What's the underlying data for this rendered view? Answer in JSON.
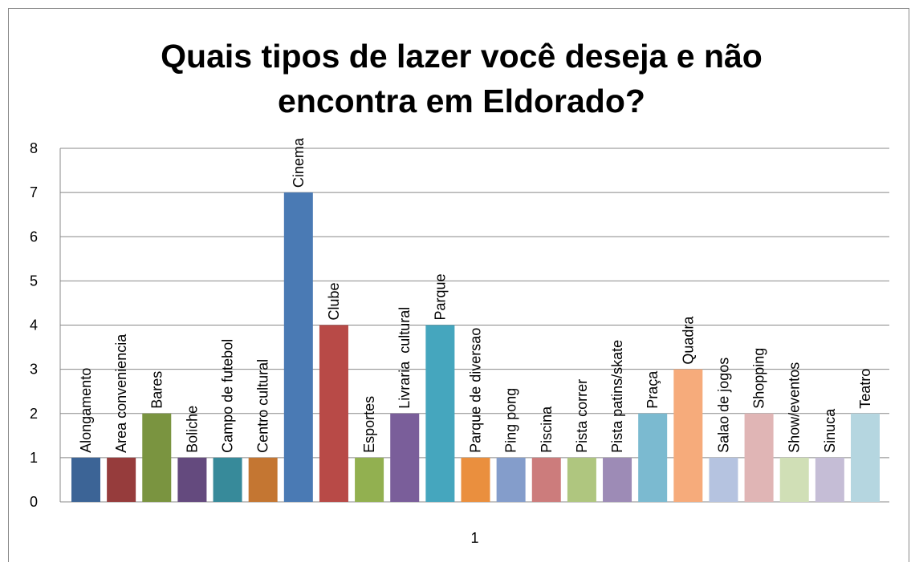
{
  "chart_data": {
    "type": "bar",
    "title": "Quais tipos de lazer você deseja e não encontra em Eldorado?",
    "categories": [
      "1"
    ],
    "ylim": [
      0,
      8
    ],
    "yticks": [
      0,
      1,
      2,
      3,
      4,
      5,
      6,
      7,
      8
    ],
    "grid": true,
    "series": [
      {
        "name": "Alongamento",
        "color": "#3c6496",
        "values": [
          1
        ]
      },
      {
        "name": "Area conveniencia",
        "color": "#963c3c",
        "values": [
          1
        ]
      },
      {
        "name": "Bares",
        "color": "#7a9440",
        "values": [
          2
        ]
      },
      {
        "name": "Boliche",
        "color": "#644a7e",
        "values": [
          1
        ]
      },
      {
        "name": "Campo de futebol",
        "color": "#378a9a",
        "values": [
          1
        ]
      },
      {
        "name": "Centro cultural",
        "color": "#c47632",
        "values": [
          1
        ]
      },
      {
        "name": "Cinema",
        "color": "#4a7ab4",
        "values": [
          7
        ]
      },
      {
        "name": "Clube",
        "color": "#b84a47",
        "values": [
          4
        ]
      },
      {
        "name": "Esportes",
        "color": "#92b050",
        "values": [
          1
        ]
      },
      {
        "name": "Livraria  cultural",
        "color": "#7a5e9a",
        "values": [
          2
        ]
      },
      {
        "name": "Parque",
        "color": "#45a6be",
        "values": [
          4
        ]
      },
      {
        "name": "Parque de diversao",
        "color": "#ea8f3e",
        "values": [
          1
        ]
      },
      {
        "name": "Ping pong",
        "color": "#849dcb",
        "values": [
          1
        ]
      },
      {
        "name": "Piscina",
        "color": "#cc7c7c",
        "values": [
          1
        ]
      },
      {
        "name": "Pista correr",
        "color": "#afc67f",
        "values": [
          1
        ]
      },
      {
        "name": "Pista patins/skate",
        "color": "#9d8bb6",
        "values": [
          1
        ]
      },
      {
        "name": "Praça",
        "color": "#7bbad0",
        "values": [
          2
        ]
      },
      {
        "name": "Quadra",
        "color": "#f6ab7b",
        "values": [
          3
        ]
      },
      {
        "name": "Salao de jogos",
        "color": "#b5c3e0",
        "values": [
          1
        ]
      },
      {
        "name": "Shopping",
        "color": "#e0b5b5",
        "values": [
          2
        ]
      },
      {
        "name": "Show/eventos",
        "color": "#d0dfb6",
        "values": [
          1
        ]
      },
      {
        "name": "Sinuca",
        "color": "#c5bdd6",
        "values": [
          1
        ]
      },
      {
        "name": "Teatro",
        "color": "#b5d6e0",
        "values": [
          2
        ]
      }
    ]
  }
}
